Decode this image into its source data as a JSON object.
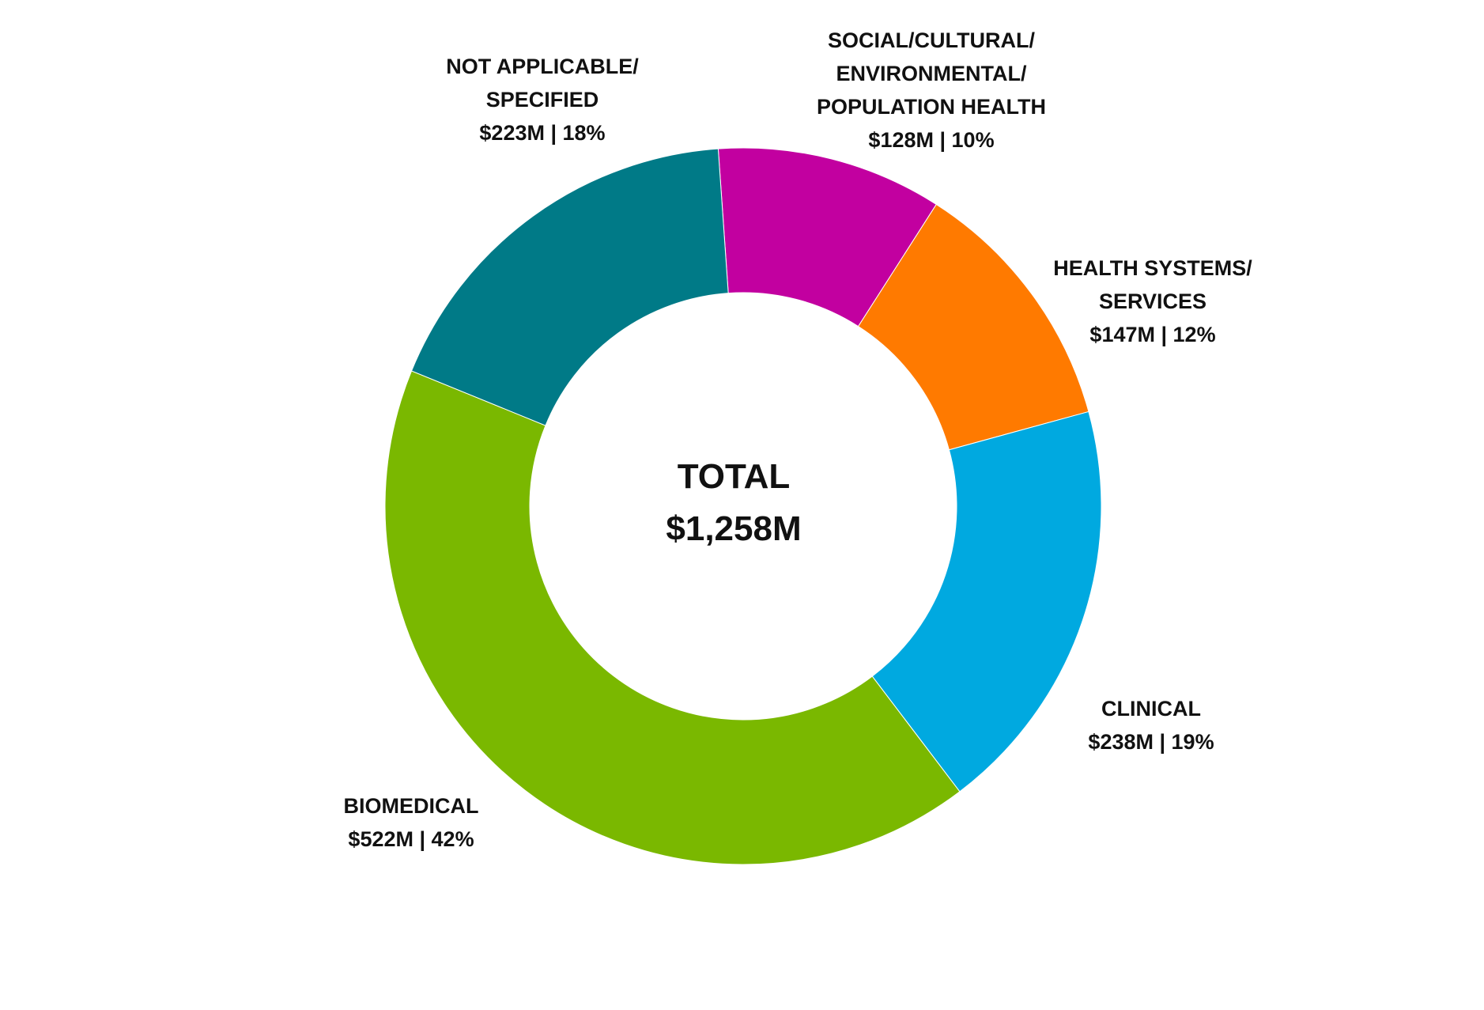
{
  "chart_data": {
    "type": "pie",
    "variant": "donut",
    "center": {
      "title": "TOTAL",
      "value": "$1,258M"
    },
    "slices": [
      {
        "key": "social",
        "label_lines": [
          "SOCIAL/CULTURAL/",
          "ENVIRONMENTAL/",
          "POPULATION HEALTH"
        ],
        "value": 128,
        "value_text": "$128M | 10%",
        "color": "#c200a0"
      },
      {
        "key": "health-systems",
        "label_lines": [
          "HEALTH SYSTEMS/",
          "SERVICES"
        ],
        "value": 147,
        "value_text": "$147M | 12%",
        "color": "#ff7a00"
      },
      {
        "key": "clinical",
        "label_lines": [
          "CLINICAL"
        ],
        "value": 238,
        "value_text": "$238M | 19%",
        "color": "#00a9e0"
      },
      {
        "key": "biomedical",
        "label_lines": [
          "BIOMEDICAL"
        ],
        "value": 522,
        "value_text": "$522M | 42%",
        "color": "#7ab800"
      },
      {
        "key": "not-applicable",
        "label_lines": [
          "NOT APPLICABLE/",
          "SPECIFIED"
        ],
        "value": 223,
        "value_text": "$223M | 18%",
        "color": "#007a87"
      }
    ]
  }
}
